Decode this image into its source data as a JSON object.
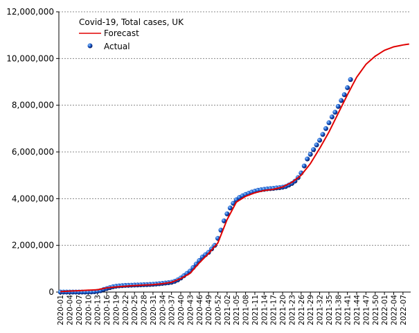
{
  "chart_data": {
    "type": "line",
    "title": "Covid-19, Total cases, UK",
    "categories": [
      "2020-01",
      null,
      null,
      "2020-04",
      null,
      null,
      "2020-07",
      null,
      null,
      "2020-10",
      null,
      null,
      "2020-13",
      null,
      null,
      "2020-16",
      null,
      null,
      "2020-19",
      null,
      null,
      "2020-22",
      null,
      null,
      "2020-25",
      null,
      null,
      "2020-28",
      null,
      null,
      "2020-31",
      null,
      null,
      "2020-34",
      null,
      null,
      "2020-37",
      null,
      null,
      "2020-40",
      null,
      null,
      "2020-43",
      null,
      null,
      "2020-46",
      null,
      null,
      "2020-49",
      null,
      null,
      "2020-52",
      null,
      null,
      "2021-02",
      null,
      null,
      "2021-05",
      null,
      null,
      "2021-08",
      null,
      null,
      "2021-11",
      null,
      null,
      "2021-14",
      null,
      null,
      "2021-17",
      null,
      null,
      "2021-20",
      null,
      null,
      "2021-23",
      null,
      null,
      "2021-26",
      null,
      null,
      "2021-29",
      null,
      null,
      "2021-32",
      null,
      null,
      "2021-35",
      null,
      null,
      "2021-38",
      null,
      null,
      "2021-41",
      null,
      null,
      "2021-44",
      null,
      null,
      "2021-47",
      null,
      null,
      "2021-50",
      null,
      null,
      "2022-01",
      null,
      null,
      "2022-04",
      null,
      null,
      "2022-07",
      null,
      null
    ],
    "series": [
      {
        "name": "Forecast",
        "color": "#e00000",
        "values": [
          20000,
          27000,
          33000,
          40000,
          47000,
          53000,
          60000,
          67000,
          73000,
          80000,
          87000,
          93000,
          100000,
          127000,
          153000,
          180000,
          193000,
          207000,
          220000,
          230000,
          240000,
          250000,
          260000,
          270000,
          280000,
          287000,
          293000,
          300000,
          307000,
          313000,
          320000,
          333000,
          347000,
          360000,
          380000,
          400000,
          420000,
          473000,
          527000,
          580000,
          653000,
          727000,
          800000,
          950000,
          1100000,
          1250000,
          1383000,
          1517000,
          1650000,
          1800000,
          1950000,
          2100000,
          2433000,
          2767000,
          3100000,
          3350000,
          3600000,
          3850000,
          3933000,
          4017000,
          4100000,
          4150000,
          4200000,
          4250000,
          4283000,
          4317000,
          4350000,
          4367000,
          4383000,
          4400000,
          4433000,
          4467000,
          4500000,
          4567000,
          4633000,
          4700000,
          4800000,
          4900000,
          5000000,
          5167000,
          5333000,
          5500000,
          5717000,
          5933000,
          6150000,
          6383000,
          6617000,
          6850000,
          7117000,
          7383000,
          7650000,
          7917000,
          8183000,
          8450000,
          8700000,
          8950000,
          9200000,
          9383000,
          9567000,
          9750000,
          9867000,
          9983000,
          10100000,
          10183000,
          10267000,
          10350000,
          10400000,
          10450000,
          10500000,
          10527000,
          10553000,
          10580000,
          10600000,
          10620000
        ]
      },
      {
        "name": "Actual",
        "color": "#1a5fd0",
        "values": [
          0,
          0,
          0,
          0,
          0,
          0,
          0,
          0,
          0,
          2000,
          5000,
          15000,
          35000,
          60000,
          110000,
          150000,
          190000,
          225000,
          250000,
          265000,
          275000,
          285000,
          290000,
          295000,
          300000,
          305000,
          310000,
          315000,
          320000,
          325000,
          335000,
          345000,
          355000,
          370000,
          385000,
          400000,
          420000,
          460000,
          520000,
          600000,
          700000,
          800000,
          900000,
          1050000,
          1200000,
          1350000,
          1500000,
          1600000,
          1700000,
          1850000,
          2000000,
          2300000,
          2650000,
          3050000,
          3350000,
          3600000,
          3800000,
          3950000,
          4050000,
          4120000,
          4180000,
          4230000,
          4280000,
          4320000,
          4360000,
          4380000,
          4400000,
          4420000,
          4430000,
          4440000,
          4460000,
          4470000,
          4490000,
          4520000,
          4580000,
          4650000,
          4750000,
          4900000,
          5100000,
          5400000,
          5700000,
          5900000,
          6100000,
          6300000,
          6500000,
          6750000,
          7000000,
          7250000,
          7500000,
          7700000,
          7950000,
          8200000,
          8450000,
          8750000,
          9100000,
          null,
          null,
          null,
          null,
          null,
          null,
          null,
          null,
          null,
          null,
          null,
          null,
          null,
          null,
          null,
          null,
          null,
          null,
          null
        ]
      }
    ],
    "ylim": [
      0,
      12000000
    ],
    "yticks": [
      0,
      {
        "value": 2000000,
        "label": "2,000,000"
      },
      {
        "value": 4000000,
        "label": "4,000,000"
      },
      {
        "value": 6000000,
        "label": "6,000,000"
      },
      {
        "value": 8000000,
        "label": "8,000,000"
      },
      {
        "value": 10000000,
        "label": "10,000,000"
      },
      {
        "value": 12000000,
        "label": "12,000,000"
      }
    ],
    "grid": true
  }
}
